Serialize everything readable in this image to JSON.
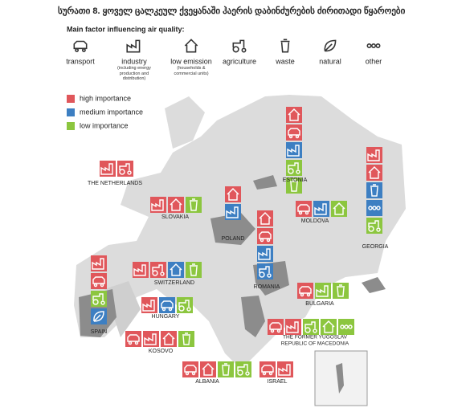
{
  "title": "სურათი 8. ყოველ ცალკეულ ქვეყანაში ჰაერის დაბინძურების ძირითადი წყაროები",
  "factors_heading": "Main factor influencing air quality:",
  "factors": [
    {
      "label": "transport"
    },
    {
      "label": "industry",
      "note": "(including energy production and distribution)"
    },
    {
      "label": "low emission",
      "note": "(households & commercial units)"
    },
    {
      "label": "agriculture"
    },
    {
      "label": "waste"
    },
    {
      "label": "natural"
    },
    {
      "label": "other"
    }
  ],
  "importance": [
    {
      "label": "high importance",
      "color": "#e0575b"
    },
    {
      "label": "medium importance",
      "color": "#3d7fc2"
    },
    {
      "label": "low importance",
      "color": "#8cc63f"
    }
  ],
  "countries": [
    {
      "name": "THE NETHERLANDS",
      "tiles": [
        [
          "industry",
          "high importance"
        ],
        [
          "agriculture",
          "high importance"
        ]
      ]
    },
    {
      "name": "ESTONIA",
      "tiles": [
        [
          "low emission",
          "high importance"
        ],
        [
          "transport",
          "high importance"
        ],
        [
          "industry",
          "medium importance"
        ],
        [
          "agriculture",
          "low importance"
        ],
        [
          "waste",
          "low importance"
        ]
      ]
    },
    {
      "name": "GEORGIA",
      "tiles": [
        [
          "industry",
          "high importance"
        ],
        [
          "low emission",
          "high importance"
        ],
        [
          "waste",
          "medium importance"
        ],
        [
          "other",
          "medium importance"
        ],
        [
          "agriculture",
          "low importance"
        ]
      ]
    },
    {
      "name": "SLOVAKIA",
      "tiles": [
        [
          "industry",
          "high importance"
        ],
        [
          "low emission",
          "high importance"
        ],
        [
          "waste",
          "low importance"
        ]
      ]
    },
    {
      "name": "POLAND",
      "tiles": [
        [
          "low emission",
          "high importance"
        ],
        [
          "industry",
          "medium importance"
        ]
      ]
    },
    {
      "name": "ROMANIA",
      "tiles": [
        [
          "low emission",
          "high importance"
        ],
        [
          "transport",
          "high importance"
        ],
        [
          "industry",
          "medium importance"
        ],
        [
          "agriculture",
          "medium importance"
        ]
      ]
    },
    {
      "name": "MOLDOVA",
      "tiles": [
        [
          "transport",
          "high importance"
        ],
        [
          "industry",
          "medium importance"
        ],
        [
          "low emission",
          "low importance"
        ]
      ]
    },
    {
      "name": "SWITZERLAND",
      "tiles": [
        [
          "industry",
          "high importance"
        ],
        [
          "agriculture",
          "high importance"
        ],
        [
          "low emission",
          "medium importance"
        ],
        [
          "waste",
          "low importance"
        ]
      ]
    },
    {
      "name": "SPAIN",
      "tiles": [
        [
          "industry",
          "high importance"
        ],
        [
          "transport",
          "high importance"
        ],
        [
          "agriculture",
          "low importance"
        ],
        [
          "natural",
          "medium importance"
        ]
      ]
    },
    {
      "name": "BULGARIA",
      "tiles": [
        [
          "transport",
          "high importance"
        ],
        [
          "industry",
          "low importance"
        ],
        [
          "waste",
          "low importance"
        ]
      ]
    },
    {
      "name": "HUNGARY",
      "tiles": [
        [
          "industry",
          "high importance"
        ],
        [
          "transport",
          "medium importance"
        ],
        [
          "agriculture",
          "low importance"
        ]
      ]
    },
    {
      "name": [
        "THE FORMER YUGOSLAV",
        "REPUBLIC OF MACEDONIA"
      ],
      "tiles": [
        [
          "transport",
          "high importance"
        ],
        [
          "industry",
          "high importance"
        ],
        [
          "agriculture",
          "low importance"
        ],
        [
          "low emission",
          "low importance"
        ],
        [
          "other",
          "low importance"
        ]
      ]
    },
    {
      "name": "KOSOVO",
      "tiles": [
        [
          "transport",
          "high importance"
        ],
        [
          "industry",
          "high importance"
        ],
        [
          "low emission",
          "high importance"
        ],
        [
          "waste",
          "low importance"
        ]
      ]
    },
    {
      "name": "ALBANIA",
      "tiles": [
        [
          "transport",
          "high importance"
        ],
        [
          "low emission",
          "high importance"
        ],
        [
          "waste",
          "low importance"
        ],
        [
          "agriculture",
          "low importance"
        ]
      ]
    },
    {
      "name": "ISRAEL",
      "tiles": [
        [
          "transport",
          "high importance"
        ],
        [
          "industry",
          "high importance"
        ]
      ]
    }
  ]
}
